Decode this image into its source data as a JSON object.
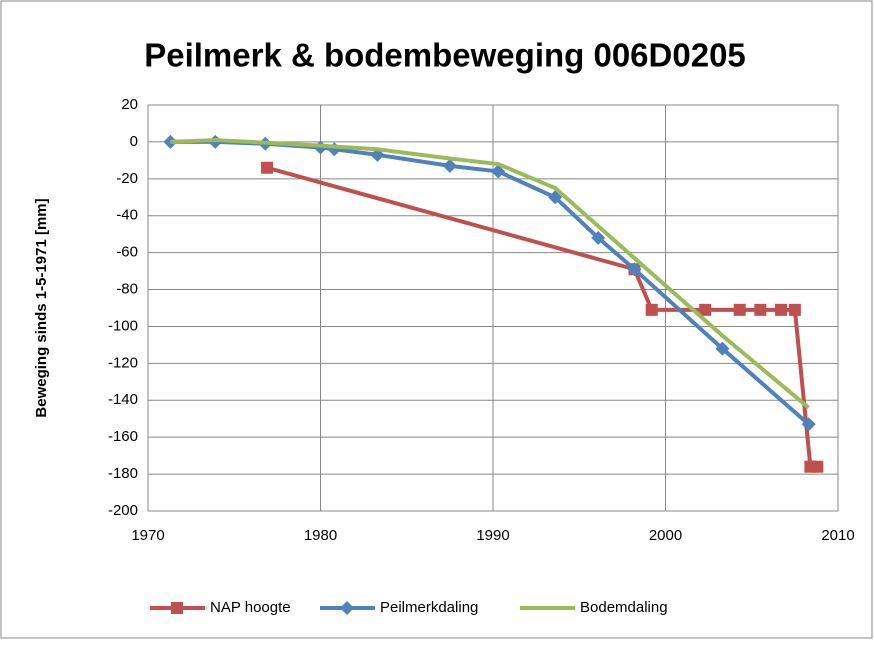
{
  "chart_data": {
    "type": "line",
    "title": "Peilmerk & bodembeweging 006D0205",
    "y_label": "Beweging sinds 1-5-1971 [mm]",
    "xlim": [
      1970,
      2010
    ],
    "xticks": [
      1970,
      1980,
      1990,
      2000,
      2010
    ],
    "ylim": [
      -200,
      20
    ],
    "yticks": [
      20,
      0,
      -20,
      -40,
      -60,
      -80,
      -100,
      -120,
      -140,
      -160,
      -180,
      -200
    ],
    "grid": true,
    "legend": "bottom",
    "series": [
      {
        "name": "NAP hoogte",
        "color": "#c0504d",
        "marker": "square",
        "x": [
          1976.9,
          1998.2,
          1999.2,
          2002.3,
          2004.3,
          2005.5,
          2006.7,
          2007.5,
          2008.4,
          2008.8
        ],
        "values": [
          -14,
          -69,
          -91,
          -91,
          -91,
          -91,
          -91,
          -91,
          -176,
          -176
        ]
      },
      {
        "name": "Peilmerkdaling",
        "color": "#4f81bd",
        "marker": "diamond",
        "x": [
          1971.3,
          1973.9,
          1976.8,
          1980,
          1980.8,
          1983.3,
          1987.5,
          1990.3,
          1993.6,
          1996.1,
          1998.2,
          2003.3,
          2008.3
        ],
        "values": [
          0,
          0,
          -1,
          -3,
          -4,
          -7,
          -13,
          -16,
          -30,
          -52,
          -69,
          -112,
          -153
        ]
      },
      {
        "name": "Bodemdaling",
        "color": "#9bbb59",
        "marker": "none",
        "x": [
          1971.3,
          1973.9,
          1980,
          1983.3,
          1987.5,
          1990.3,
          1993.6,
          1998.2,
          2003.3,
          2008.3
        ],
        "values": [
          0,
          1,
          -2,
          -4,
          -9,
          -12,
          -25,
          -63,
          -105,
          -144
        ]
      }
    ]
  }
}
